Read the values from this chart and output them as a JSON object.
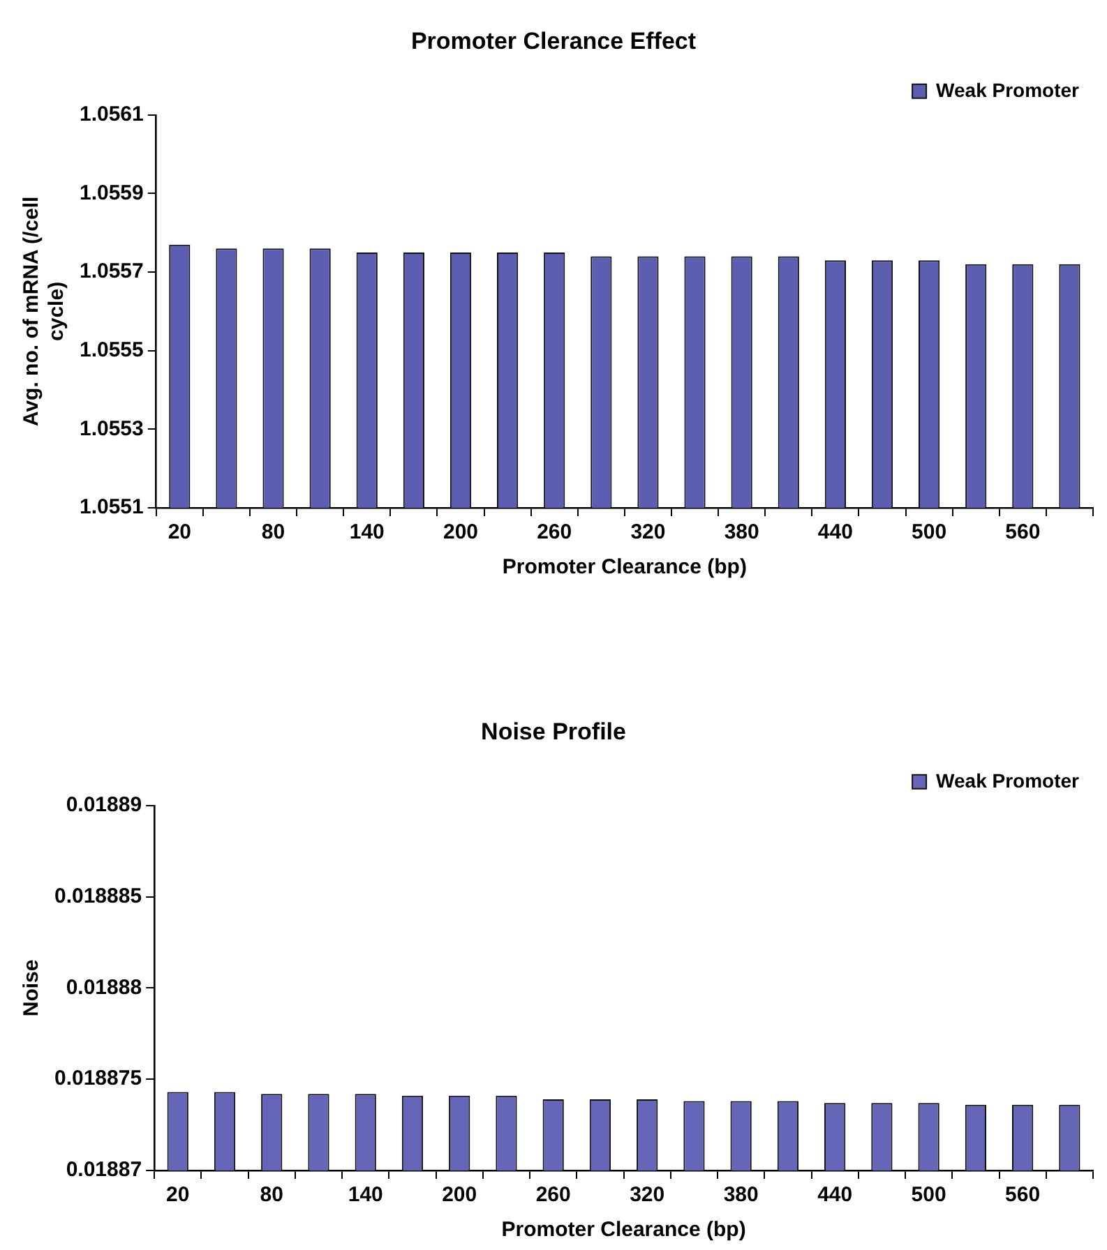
{
  "chart_data": [
    {
      "type": "bar",
      "title": "Promoter Clerance Effect",
      "xlabel": "Promoter Clearance (bp)",
      "ylabel": "Avg. no. of mRNA (/cell cycle)",
      "categories": [
        "20",
        null,
        "80",
        null,
        "140",
        null,
        "200",
        null,
        "260",
        null,
        "320",
        null,
        "380",
        null,
        "440",
        null,
        "500",
        null,
        "560",
        null
      ],
      "series": [
        {
          "name": "Weak Promoter",
          "color": "#5c5eb2",
          "values": [
            1.05577,
            1.05576,
            1.05576,
            1.05576,
            1.05575,
            1.05575,
            1.05575,
            1.05575,
            1.05575,
            1.05574,
            1.05574,
            1.05574,
            1.05574,
            1.05574,
            1.05573,
            1.05573,
            1.05573,
            1.05572,
            1.05572,
            1.05572
          ]
        }
      ],
      "ylim": [
        1.0551,
        1.0561
      ],
      "yticks": [
        1.0551,
        1.0553,
        1.0555,
        1.0557,
        1.0559,
        1.0561
      ],
      "grid": false,
      "legend": "top right"
    },
    {
      "type": "bar",
      "title": "Noise Profile",
      "xlabel": "Promoter Clearance (bp)",
      "ylabel": "Noise",
      "categories": [
        "20",
        null,
        "80",
        null,
        "140",
        null,
        "200",
        null,
        "260",
        null,
        "320",
        null,
        "380",
        null,
        "440",
        null,
        "500",
        null,
        "560",
        null
      ],
      "series": [
        {
          "name": "Weak Promoter",
          "color": "#6566b8",
          "values": [
            0.0188743,
            0.0188743,
            0.0188742,
            0.0188742,
            0.0188742,
            0.0188741,
            0.0188741,
            0.0188741,
            0.0188739,
            0.0188739,
            0.0188739,
            0.0188738,
            0.0188738,
            0.0188738,
            0.0188737,
            0.0188737,
            0.0188737,
            0.0188736,
            0.0188736,
            0.0188736
          ]
        }
      ],
      "ylim": [
        0.01887,
        0.01889
      ],
      "yticks": [
        0.01887,
        0.018875,
        0.01888,
        0.018885,
        0.01889
      ],
      "grid": false,
      "legend": "top right"
    }
  ]
}
